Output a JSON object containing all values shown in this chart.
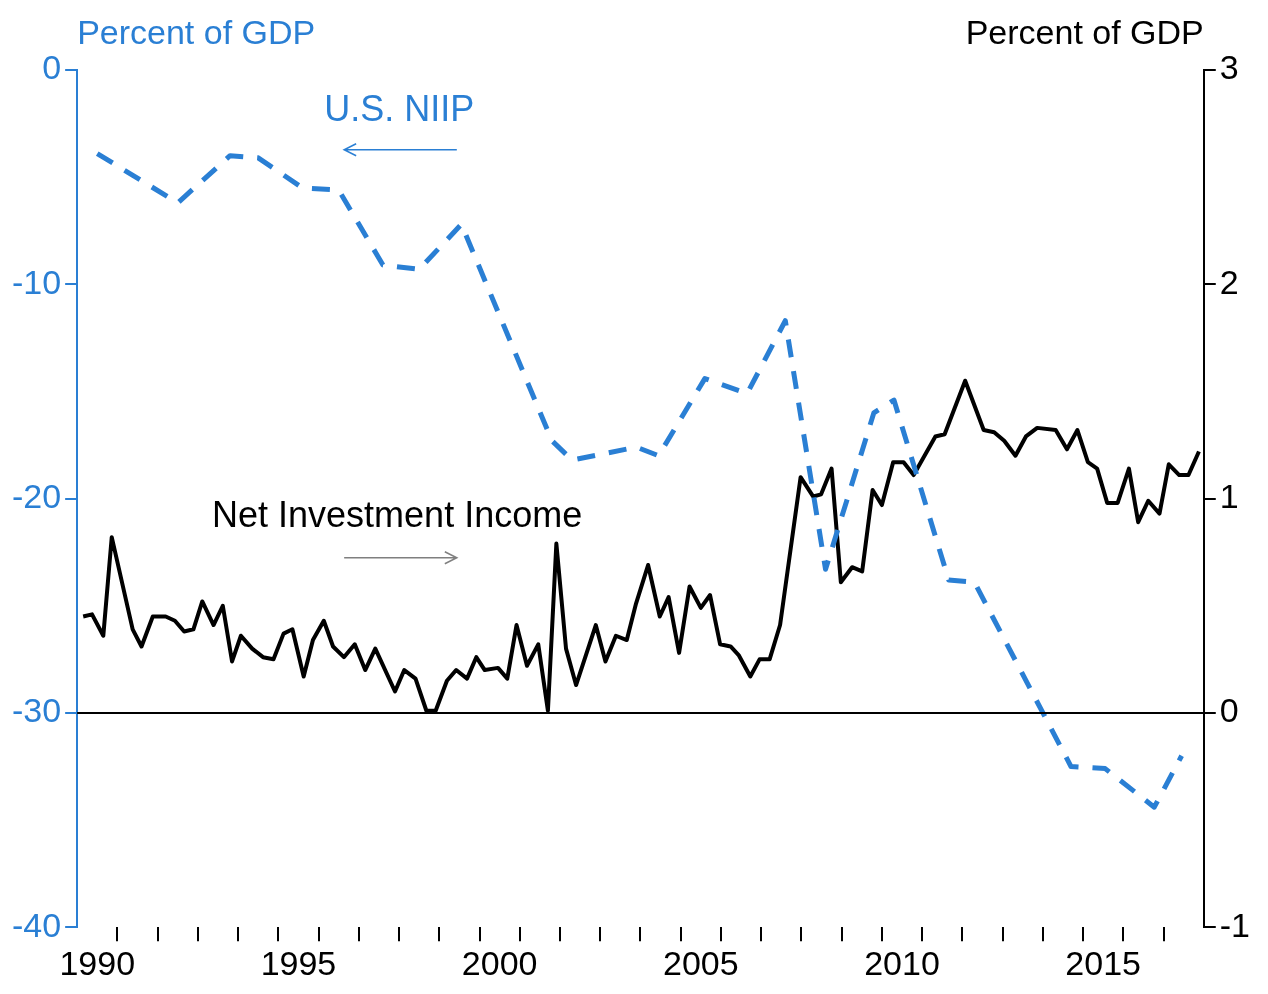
{
  "chart_data": {
    "type": "line",
    "ylabel": "Percent of GDP",
    "y2label": "Percent of GDP",
    "xlim": [
      1990,
      2018
    ],
    "xticks": [
      {
        "value": 1990.5,
        "label": "1990"
      },
      {
        "value": 1991,
        "label": null
      },
      {
        "value": 1992,
        "label": null
      },
      {
        "value": 1993,
        "label": null
      },
      {
        "value": 1994,
        "label": null
      },
      {
        "value": 1995,
        "label": null
      },
      {
        "value": 1995.5,
        "label": "1995"
      },
      {
        "value": 1996,
        "label": null
      },
      {
        "value": 1997,
        "label": null
      },
      {
        "value": 1998,
        "label": null
      },
      {
        "value": 1999,
        "label": null
      },
      {
        "value": 2000,
        "label": null
      },
      {
        "value": 2000.5,
        "label": "2000"
      },
      {
        "value": 2001,
        "label": null
      },
      {
        "value": 2002,
        "label": null
      },
      {
        "value": 2003,
        "label": null
      },
      {
        "value": 2004,
        "label": null
      },
      {
        "value": 2005,
        "label": null
      },
      {
        "value": 2005.5,
        "label": "2005"
      },
      {
        "value": 2006,
        "label": null
      },
      {
        "value": 2007,
        "label": null
      },
      {
        "value": 2008,
        "label": null
      },
      {
        "value": 2009,
        "label": null
      },
      {
        "value": 2010,
        "label": null
      },
      {
        "value": 2010.5,
        "label": "2010"
      },
      {
        "value": 2011,
        "label": null
      },
      {
        "value": 2012,
        "label": null
      },
      {
        "value": 2013,
        "label": null
      },
      {
        "value": 2014,
        "label": null
      },
      {
        "value": 2015,
        "label": null
      },
      {
        "value": 2015.5,
        "label": "2015"
      },
      {
        "value": 2016,
        "label": null
      },
      {
        "value": 2017,
        "label": null
      }
    ],
    "ylim": [
      -40,
      0
    ],
    "yticks": [
      -40,
      -30,
      -20,
      -10,
      0
    ],
    "y2lim": [
      -1,
      3
    ],
    "y2ticks": [
      -1,
      0,
      1,
      2,
      3
    ],
    "grid": false,
    "legend": false,
    "marker": "none",
    "ref_lines": [
      {
        "axis": "y2",
        "value": 0,
        "color": "#000000"
      }
    ],
    "series": [
      {
        "name": "U.S. NIIP",
        "color": "#2a7fd4",
        "line_style": "dashed",
        "x": [
          1990.5,
          1992.5,
          1993.8,
          1994.5,
          1995.6,
          1996.5,
          1997.6,
          1998.5,
          1999.55,
          2001.8,
          2002.3,
          2003.9,
          2004.45,
          2005.6,
          2006.65,
          2007.6,
          2008.6,
          2009.8,
          2010.3,
          2011.66,
          2012.3,
          2014.7,
          2015.55,
          2016.77,
          2017.45
        ],
        "values": [
          -3.9,
          -6.2,
          -4.0,
          -4.1,
          -5.5,
          -5.6,
          -9.1,
          -9.3,
          -7.2,
          -17.3,
          -18.2,
          -17.6,
          -18.0,
          -14.4,
          -15.1,
          -11.7,
          -23.3,
          -16.0,
          -15.4,
          -23.8,
          -23.9,
          -32.5,
          -32.6,
          -34.4,
          -32.0
        ]
      },
      {
        "name": "Net Investment Income",
        "color": "#000000",
        "line_style": "solid",
        "axis": "y2",
        "x": [
          1990.15,
          1990.37,
          1990.65,
          1990.86,
          1991.38,
          1991.6,
          1991.88,
          1992.2,
          1992.43,
          1992.66,
          1992.89,
          1993.11,
          1993.39,
          1993.62,
          1993.85,
          1994.07,
          1994.35,
          1994.62,
          1994.88,
          1995.13,
          1995.35,
          1995.63,
          1995.86,
          1996.13,
          1996.36,
          1996.63,
          1996.9,
          1997.16,
          1997.41,
          1997.9,
          1998.13,
          1998.41,
          1998.68,
          1998.91,
          1999.19,
          1999.42,
          1999.69,
          1999.92,
          2000.13,
          2000.46,
          2000.69,
          2000.92,
          2001.18,
          2001.46,
          2001.7,
          2001.91,
          2002.15,
          2002.4,
          2002.89,
          2003.13,
          2003.39,
          2003.66,
          2003.89,
          2004.19,
          2004.48,
          2004.7,
          2004.96,
          2005.22,
          2005.5,
          2005.73,
          2005.98,
          2006.24,
          2006.44,
          2006.73,
          2006.96,
          2007.21,
          2007.47,
          2007.98,
          2008.29,
          2008.49,
          2008.75,
          2008.98,
          2009.26,
          2009.51,
          2009.77,
          2010.0,
          2010.28,
          2010.54,
          2010.79,
          2011.33,
          2011.56,
          2012.07,
          2012.53,
          2012.79,
          2013.04,
          2013.32,
          2013.58,
          2013.86,
          2014.32,
          2014.6,
          2014.86,
          2015.12,
          2015.35,
          2015.6,
          2015.86,
          2016.14,
          2016.37,
          2016.62,
          2016.9,
          2017.13,
          2017.39,
          2017.62,
          2017.88
        ],
        "values": [
          0.45,
          0.46,
          0.36,
          0.82,
          0.39,
          0.31,
          0.45,
          0.45,
          0.43,
          0.38,
          0.39,
          0.52,
          0.41,
          0.5,
          0.24,
          0.36,
          0.3,
          0.26,
          0.25,
          0.37,
          0.39,
          0.17,
          0.34,
          0.43,
          0.31,
          0.26,
          0.32,
          0.2,
          0.3,
          0.1,
          0.2,
          0.16,
          0.01,
          0.01,
          0.15,
          0.2,
          0.16,
          0.26,
          0.2,
          0.21,
          0.16,
          0.41,
          0.22,
          0.32,
          0.01,
          0.79,
          0.3,
          0.13,
          0.41,
          0.24,
          0.36,
          0.34,
          0.51,
          0.69,
          0.45,
          0.54,
          0.28,
          0.59,
          0.49,
          0.55,
          0.32,
          0.31,
          0.27,
          0.17,
          0.25,
          0.25,
          0.41,
          1.1,
          1.01,
          1.02,
          1.14,
          0.61,
          0.68,
          0.66,
          1.04,
          0.97,
          1.17,
          1.17,
          1.11,
          1.29,
          1.3,
          1.55,
          1.32,
          1.31,
          1.27,
          1.2,
          1.29,
          1.33,
          1.32,
          1.23,
          1.32,
          1.17,
          1.14,
          0.98,
          0.98,
          1.14,
          0.89,
          0.99,
          0.93,
          1.16,
          1.11,
          1.11,
          1.22
        ]
      }
    ]
  }
}
